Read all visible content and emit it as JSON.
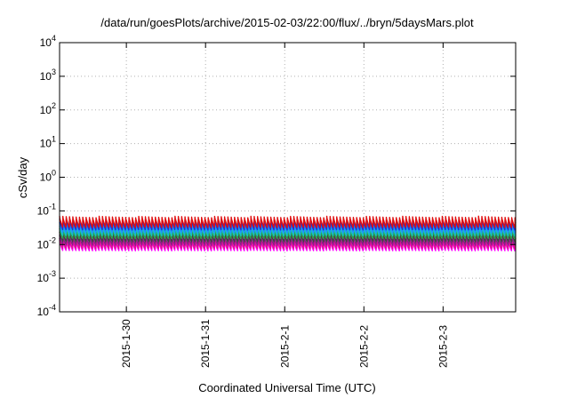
{
  "chart_data": {
    "type": "line",
    "title": "/data/run/goesPlots/archive/2015-02-03/22:00/flux/../bryn/5daysMars.plot",
    "xlabel": "Coordinated Universal Time (UTC)",
    "ylabel": "cSv/day",
    "y_scale": "log",
    "ylim": [
      0.0001,
      10000
    ],
    "y_ticks": [
      {
        "value": 0.0001,
        "base": "10",
        "exp": "-4"
      },
      {
        "value": 0.001,
        "base": "10",
        "exp": "-3"
      },
      {
        "value": 0.01,
        "base": "10",
        "exp": "-2"
      },
      {
        "value": 0.1,
        "base": "10",
        "exp": "-1"
      },
      {
        "value": 1,
        "base": "10",
        "exp": "0"
      },
      {
        "value": 10,
        "base": "10",
        "exp": "1"
      },
      {
        "value": 100,
        "base": "10",
        "exp": "2"
      },
      {
        "value": 1000,
        "base": "10",
        "exp": "3"
      },
      {
        "value": 10000,
        "base": "10",
        "exp": "4"
      }
    ],
    "xlim": [
      "2015-01-29T03:45",
      "2015-02-03T22:00"
    ],
    "x_ticks": [
      "2015-1-30",
      "2015-1-31",
      "2015-2-1",
      "2015-2-2",
      "2015-2-3"
    ],
    "grid": true,
    "legend": "none",
    "series_style": "sawtooth with roughly hourly cycles; 9 lines",
    "series": [
      {
        "color": "#ff00ff",
        "low": 0.0065,
        "high": 0.0135
      },
      {
        "color": "#e0148c",
        "low": 0.0075,
        "high": 0.0155
      },
      {
        "color": "#8a1a8a",
        "low": 0.0095,
        "high": 0.019
      },
      {
        "color": "#404040",
        "low": 0.012,
        "high": 0.024
      },
      {
        "color": "#2aa04a",
        "low": 0.015,
        "high": 0.03
      },
      {
        "color": "#16c0c0",
        "low": 0.018,
        "high": 0.036
      },
      {
        "color": "#1e90ff",
        "low": 0.022,
        "high": 0.046
      },
      {
        "color": "#2030d0",
        "low": 0.027,
        "high": 0.058
      },
      {
        "color": "#e01010",
        "low": 0.032,
        "high": 0.07
      }
    ]
  }
}
